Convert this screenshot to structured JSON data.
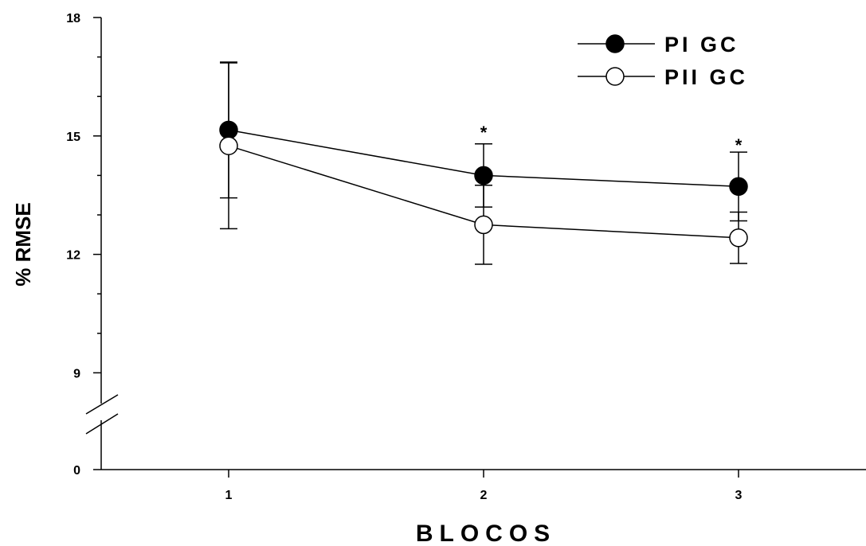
{
  "chart_data": {
    "type": "line",
    "xlabel": "BLOCOS",
    "ylabel": "% RMSE",
    "x": [
      1,
      2,
      3
    ],
    "x_tick_labels": [
      "1",
      "2",
      "3"
    ],
    "y_tick_labels": [
      "0",
      "9",
      "12",
      "15",
      "18"
    ],
    "y_axis_break": [
      0,
      8
    ],
    "xlim": [
      0.5,
      3.5
    ],
    "ylim": [
      8,
      18
    ],
    "grid": false,
    "legend_position": "top-right",
    "series": [
      {
        "name": "PI GC",
        "marker": "filled-circle",
        "values": [
          15.15,
          14.0,
          13.72
        ],
        "error": [
          1.72,
          0.8,
          0.87
        ]
      },
      {
        "name": "PII GC",
        "marker": "open-circle",
        "values": [
          14.75,
          12.75,
          12.42
        ],
        "error": [
          2.1,
          1.0,
          0.65
        ]
      }
    ],
    "annotations": [
      {
        "text": "*",
        "x": 2,
        "y": 15.18
      },
      {
        "text": "*",
        "x": 3,
        "y": 14.85
      }
    ]
  }
}
